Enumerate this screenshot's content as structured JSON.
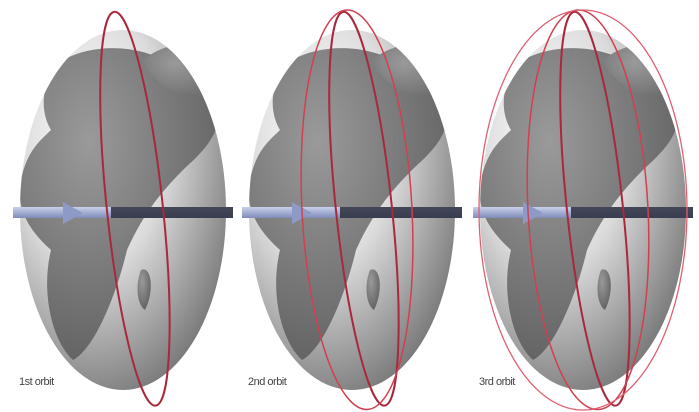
{
  "panels": [
    {
      "label": "1st orbit"
    },
    {
      "label": "2nd orbit"
    },
    {
      "label": "3rd orbit"
    }
  ]
}
